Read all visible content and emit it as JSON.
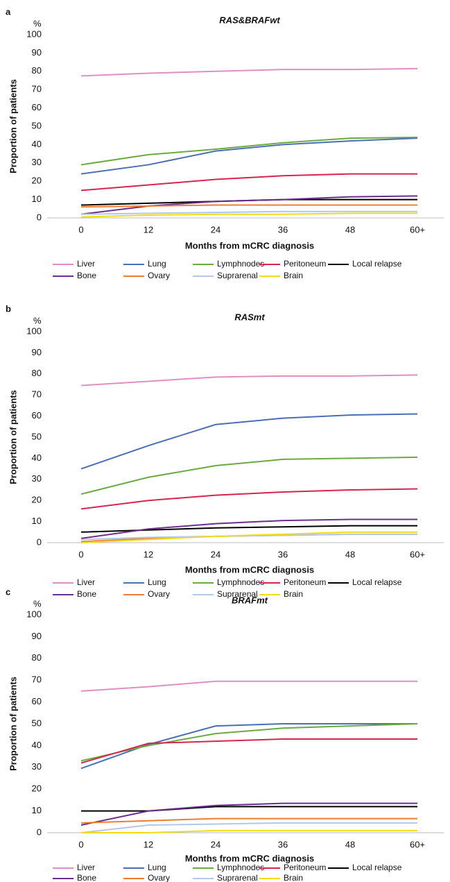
{
  "chart_data": [
    {
      "type": "line",
      "panel_label": "a",
      "title": "RAS&BRAFwt",
      "y_unit": "%",
      "ylabel": "Proportion of patients",
      "xlabel": "Months from mCRC diagnosis",
      "categories": [
        "0",
        "12",
        "24",
        "36",
        "48",
        "60+"
      ],
      "ylim": [
        0,
        100
      ],
      "yticks": [
        0,
        10,
        20,
        30,
        40,
        50,
        60,
        70,
        80,
        90,
        100
      ],
      "series": [
        {
          "name": "Liver",
          "color": "#e08fc2",
          "values": [
            77.5,
            79,
            80,
            81,
            81,
            81.5
          ]
        },
        {
          "name": "Lung",
          "color": "#4a6fb5",
          "values": [
            24,
            29,
            36.5,
            40,
            42,
            43.5
          ]
        },
        {
          "name": "Lymphnodes",
          "color": "#6aaa3f",
          "values": [
            29,
            34.5,
            37.5,
            41,
            43.5,
            44
          ]
        },
        {
          "name": "Peritoneum",
          "color": "#d6254f",
          "values": [
            15,
            18,
            21,
            23,
            24,
            24
          ]
        },
        {
          "name": "Local relapse",
          "color": "#000000",
          "values": [
            7,
            8,
            9,
            10,
            10,
            10
          ]
        },
        {
          "name": "Bone",
          "color": "#6a2e8c",
          "values": [
            2,
            6.5,
            9,
            10,
            11.5,
            12
          ]
        },
        {
          "name": "Ovary",
          "color": "#ed7d31",
          "values": [
            6,
            6.5,
            7,
            7,
            7,
            7
          ]
        },
        {
          "name": "Suprarenal",
          "color": "#b4c7e7",
          "values": [
            2,
            2.5,
            3,
            3.5,
            3.5,
            3.5
          ]
        },
        {
          "name": "Brain",
          "color": "#f0dc1a",
          "values": [
            0.5,
            1.5,
            2,
            2,
            2.5,
            2.5
          ]
        }
      ]
    },
    {
      "type": "line",
      "panel_label": "b",
      "title": "RASmt",
      "y_unit": "%",
      "ylabel": "Proportion of patients",
      "xlabel": "Months from mCRC diagnosis",
      "categories": [
        "0",
        "12",
        "24",
        "36",
        "48",
        "60+"
      ],
      "ylim": [
        0,
        100
      ],
      "yticks": [
        0,
        10,
        20,
        30,
        40,
        50,
        60,
        70,
        80,
        90,
        100
      ],
      "series": [
        {
          "name": "Liver",
          "color": "#e08fc2",
          "values": [
            74.5,
            76.5,
            78.5,
            79,
            79,
            79.5
          ]
        },
        {
          "name": "Lung",
          "color": "#4a6fb5",
          "values": [
            35,
            46,
            56,
            59,
            60.5,
            61
          ]
        },
        {
          "name": "Lymphnodes",
          "color": "#6aaa3f",
          "values": [
            23,
            31,
            36.5,
            39.5,
            40,
            40.5
          ]
        },
        {
          "name": "Peritoneum",
          "color": "#d6254f",
          "values": [
            16,
            20,
            22.5,
            24,
            25,
            25.5
          ]
        },
        {
          "name": "Local relapse",
          "color": "#000000",
          "values": [
            5,
            6,
            7,
            7.5,
            8,
            8
          ]
        },
        {
          "name": "Bone",
          "color": "#6a2e8c",
          "values": [
            2,
            6.5,
            9,
            10.5,
            11,
            11
          ]
        },
        {
          "name": "Ovary",
          "color": "#ed7d31",
          "values": [
            0.5,
            2,
            3,
            3.5,
            4,
            4
          ]
        },
        {
          "name": "Suprarenal",
          "color": "#b4c7e7",
          "values": [
            1.5,
            2.5,
            3,
            3.5,
            4,
            4
          ]
        },
        {
          "name": "Brain",
          "color": "#f0dc1a",
          "values": [
            0,
            1.5,
            3,
            4,
            5,
            5
          ]
        }
      ]
    },
    {
      "type": "line",
      "panel_label": "c",
      "title": "BRAFmt",
      "y_unit": "%",
      "ylabel": "Proportion of patients",
      "xlabel": "Months from mCRC diagnosis",
      "categories": [
        "0",
        "12",
        "24",
        "36",
        "48",
        "60+"
      ],
      "ylim": [
        0,
        100
      ],
      "yticks": [
        0,
        10,
        20,
        30,
        40,
        50,
        60,
        70,
        80,
        90,
        100
      ],
      "series": [
        {
          "name": "Liver",
          "color": "#e08fc2",
          "values": [
            65,
            67,
            69.5,
            69.5,
            69.5,
            69.5
          ]
        },
        {
          "name": "Lung",
          "color": "#4a6fb5",
          "values": [
            29.5,
            40.5,
            49,
            50,
            50,
            50
          ]
        },
        {
          "name": "Lymphnodes",
          "color": "#6aaa3f",
          "values": [
            33,
            40,
            45.5,
            48,
            49,
            50
          ]
        },
        {
          "name": "Peritoneum",
          "color": "#d6254f",
          "values": [
            32,
            41,
            42,
            43,
            43,
            43
          ]
        },
        {
          "name": "Local relapse",
          "color": "#000000",
          "values": [
            10,
            10,
            12,
            12,
            12,
            12
          ]
        },
        {
          "name": "Bone",
          "color": "#6a2e8c",
          "values": [
            3.5,
            10,
            12.5,
            13.5,
            13.5,
            13.5
          ]
        },
        {
          "name": "Ovary",
          "color": "#ed7d31",
          "values": [
            4.5,
            5.5,
            6.5,
            6.5,
            6.5,
            6.5
          ]
        },
        {
          "name": "Suprarenal",
          "color": "#b4c7e7",
          "values": [
            0,
            3.5,
            4,
            4.5,
            4.5,
            4.5
          ]
        },
        {
          "name": "Brain",
          "color": "#f0dc1a",
          "values": [
            0,
            0,
            1,
            1,
            1,
            1
          ]
        }
      ]
    }
  ]
}
